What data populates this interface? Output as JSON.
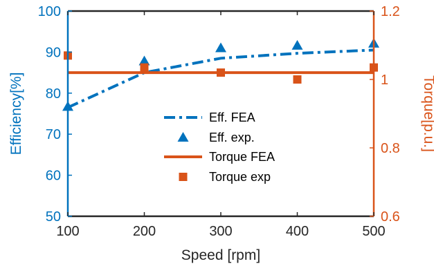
{
  "chart_data": {
    "type": "line",
    "xlabel": "Speed [rpm]",
    "ylabel_left": "Efficiency[%]",
    "ylabel_right": "Torque[p.u.]",
    "xlim": [
      100,
      500
    ],
    "ylim_left": [
      50,
      100
    ],
    "ylim_right": [
      0.6,
      1.2
    ],
    "x_ticks": [
      100,
      200,
      300,
      400,
      500
    ],
    "y_ticks_left": [
      50,
      60,
      70,
      80,
      90,
      100
    ],
    "y_ticks_right": [
      "0.6",
      "0.8",
      "1",
      "1.2"
    ],
    "grid": false,
    "legend_position": "center",
    "colors": {
      "left_axis": "#0072BD",
      "right_axis": "#D95319",
      "frame": "#262626"
    },
    "series": [
      {
        "name": "Eff. FEA",
        "axis": "left",
        "style": "dash-dot",
        "marker": "none",
        "x": [
          100,
          200,
          300,
          400,
          500
        ],
        "y": [
          76.5,
          85.0,
          88.5,
          89.7,
          90.5
        ]
      },
      {
        "name": "Eff. exp.",
        "axis": "left",
        "style": "none",
        "marker": "triangle",
        "x": [
          100,
          200,
          300,
          400,
          500
        ],
        "y": [
          76.7,
          87.8,
          91.0,
          91.6,
          92.1
        ]
      },
      {
        "name": "Torque FEA",
        "axis": "right",
        "style": "solid",
        "marker": "none",
        "x": [
          100,
          500
        ],
        "y": [
          1.02,
          1.02
        ]
      },
      {
        "name": "Torque exp",
        "axis": "right",
        "style": "none",
        "marker": "square",
        "x": [
          100,
          200,
          300,
          400,
          500
        ],
        "y": [
          1.07,
          1.035,
          1.02,
          1.0,
          1.035
        ]
      }
    ]
  }
}
